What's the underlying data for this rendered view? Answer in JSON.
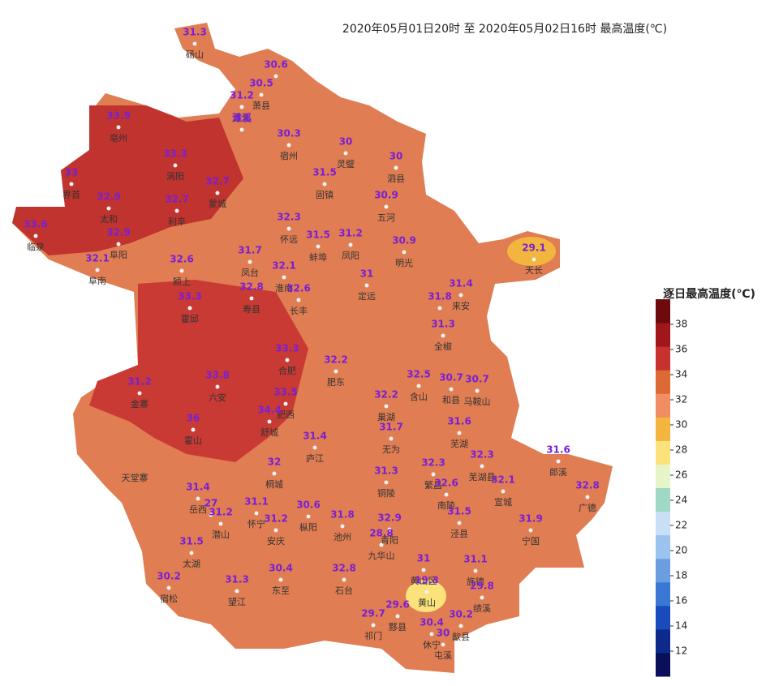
{
  "title": "2020年05月01日20时  至  2020年05月02日16时  最高温度(℃)",
  "legend": {
    "title": "逐日最高温度(℃)",
    "range": [
      10,
      40
    ],
    "ticks": [
      12,
      14,
      16,
      18,
      20,
      22,
      24,
      26,
      28,
      30,
      32,
      34,
      36,
      38
    ],
    "colors": [
      "#0a0f5a",
      "#0d2a8a",
      "#1a4bbb",
      "#3a78d4",
      "#6b9ee0",
      "#9bc3ee",
      "#c8dff5",
      "#9fd8c4",
      "#e6f5c8",
      "#fbe27a",
      "#f2b53e",
      "#f08d63",
      "#dd6a35",
      "#c8322e",
      "#a0161a",
      "#6e0a0e"
    ]
  },
  "labels": [
    "天堂寨"
  ],
  "stations": [
    {
      "value": "31.3",
      "name": "砀山"
    },
    {
      "value": "30.6"
    },
    {
      "value": "30.5",
      "name": "萧县"
    },
    {
      "value": "31.2",
      "name": "淮北"
    },
    {
      "value": "濉溪"
    },
    {
      "value": "33.9",
      "name": "亳州"
    },
    {
      "value": "33.3",
      "name": "涡阳"
    },
    {
      "value": "32.7",
      "name": "蒙城"
    },
    {
      "value": "32.7",
      "name": "利辛"
    },
    {
      "value": "33",
      "name": "界首"
    },
    {
      "value": "32.9",
      "name": "太和"
    },
    {
      "value": "33.6",
      "name": "临泉"
    },
    {
      "value": "32.9",
      "name": "阜阳"
    },
    {
      "value": "32.1",
      "name": "阜南"
    },
    {
      "value": "32.6",
      "name": "颍上"
    },
    {
      "value": "33.3",
      "name": "霍邱"
    },
    {
      "value": "30.3",
      "name": "宿州"
    },
    {
      "value": "30",
      "name": "灵璧"
    },
    {
      "value": "30",
      "name": "泗县"
    },
    {
      "value": "31.5",
      "name": "固镇"
    },
    {
      "value": "30.9",
      "name": "五河"
    },
    {
      "value": "32.3",
      "name": "怀远"
    },
    {
      "value": "31.5",
      "name": "蚌埠"
    },
    {
      "value": "31.2",
      "name": "凤阳"
    },
    {
      "value": "31.7",
      "name": "凤台"
    },
    {
      "value": "32.1",
      "name": "淮南"
    },
    {
      "value": "30.9",
      "name": "明光"
    },
    {
      "value": "31",
      "name": "定远"
    },
    {
      "value": "32.8",
      "name": "寿县"
    },
    {
      "value": "32.6",
      "name": "长丰"
    },
    {
      "value": "31.4",
      "name": "来安"
    },
    {
      "value": "31.8"
    },
    {
      "value": "31.3",
      "name": "全椒"
    },
    {
      "value": "29.1",
      "name": "天长"
    },
    {
      "value": "33.3",
      "name": "合肥"
    },
    {
      "value": "33.8",
      "name": "六安"
    },
    {
      "value": "31.2",
      "name": "金寨"
    },
    {
      "value": "36",
      "name": "霍山"
    },
    {
      "value": "33.5",
      "name": "肥西"
    },
    {
      "value": "34.4",
      "name": "舒城"
    },
    {
      "value": "32.2",
      "name": "肥东"
    },
    {
      "value": "32.5",
      "name": "含山"
    },
    {
      "value": "30.7",
      "name": "和县"
    },
    {
      "value": "30.7",
      "name": "马鞍山"
    },
    {
      "value": "32.2",
      "name": "巢湖"
    },
    {
      "value": "31.7",
      "name": "无为"
    },
    {
      "value": "31.6",
      "name": "芜湖"
    },
    {
      "value": "31.4",
      "name": "庐江"
    },
    {
      "value": "32",
      "name": "桐城"
    },
    {
      "value": "31.3",
      "name": "铜陵"
    },
    {
      "value": "32.3",
      "name": "繁昌"
    },
    {
      "value": "32.3",
      "name": "芜湖县"
    },
    {
      "value": "32.6",
      "name": "南陵"
    },
    {
      "value": "32.1",
      "name": "宣城"
    },
    {
      "value": "31.6",
      "name": "郎溪"
    },
    {
      "value": "32.8",
      "name": "广德"
    },
    {
      "value": "31.4",
      "name": "岳西"
    },
    {
      "value": "27"
    },
    {
      "value": "31.2",
      "name": "潜山"
    },
    {
      "value": "31.1",
      "name": "怀宁"
    },
    {
      "value": "31.2",
      "name": "安庆"
    },
    {
      "value": "30.6",
      "name": "枞阳"
    },
    {
      "value": "31.8",
      "name": "池州"
    },
    {
      "value": "32.9",
      "name": "青阳"
    },
    {
      "value": "31.5",
      "name": "泾县"
    },
    {
      "value": "31.9",
      "name": "宁国"
    },
    {
      "value": "28.8",
      "name": "九华山"
    },
    {
      "value": "31.5",
      "name": "太湖"
    },
    {
      "value": "30.2",
      "name": "宿松"
    },
    {
      "value": "31.3",
      "name": "望江"
    },
    {
      "value": "30.4",
      "name": "东至"
    },
    {
      "value": "32.8",
      "name": "石台"
    },
    {
      "value": "31",
      "name": "黄山区"
    },
    {
      "value": "31.1",
      "name": "旌德"
    },
    {
      "value": "19.3",
      "name": "黄山"
    },
    {
      "value": "29.8",
      "name": "绩溪"
    },
    {
      "value": "29.7",
      "name": "祁门"
    },
    {
      "value": "29.6",
      "name": "黟县"
    },
    {
      "value": "30.4",
      "name": "休宁"
    },
    {
      "value": "30.2",
      "name": "歙县"
    },
    {
      "value": "30",
      "name": "屯溪"
    }
  ]
}
